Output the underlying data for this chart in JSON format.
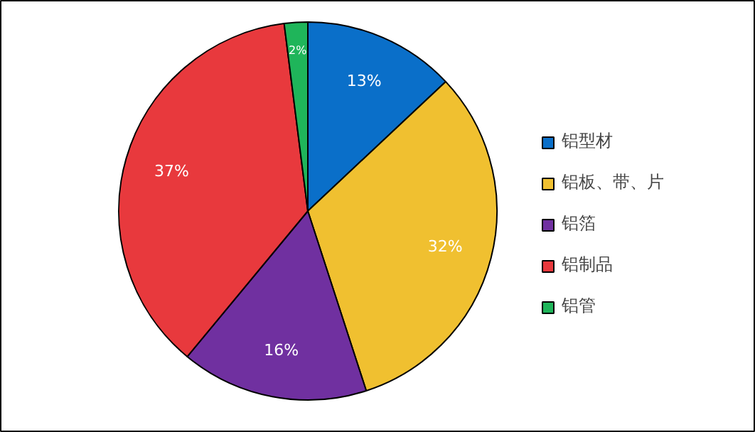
{
  "chart_data": {
    "type": "pie",
    "categories": [
      "铝型材",
      "铝板、带、片",
      "铝箔",
      "铝制品",
      "铝管"
    ],
    "values": [
      13,
      32,
      16,
      37,
      2
    ],
    "colors": [
      "#0a6fc9",
      "#f0c030",
      "#7030a0",
      "#e8393d",
      "#1fb55a"
    ],
    "value_labels": [
      "13%",
      "32%",
      "16%",
      "37%",
      "2%"
    ],
    "legend": "right"
  }
}
